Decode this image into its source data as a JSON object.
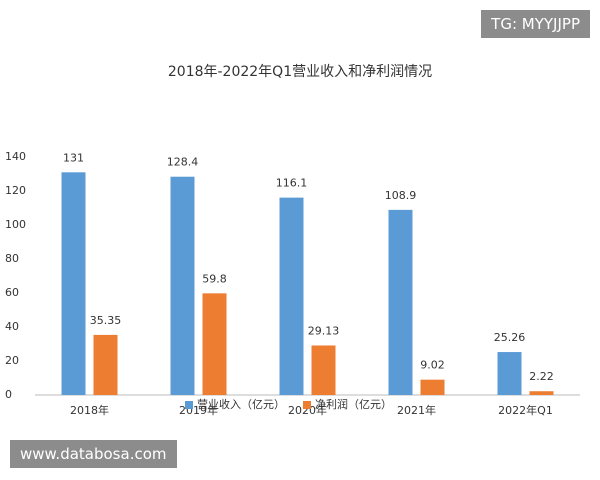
{
  "chart_data": {
    "type": "bar",
    "title": "2018年-2022年Q1营业收入和净利润情况",
    "categories": [
      "2018年",
      "2019年",
      "2020年",
      "2021年",
      "2022年Q1"
    ],
    "series": [
      {
        "name": "营业收入（亿元）",
        "color": "#5b9bd5",
        "values": [
          131,
          128.4,
          116.1,
          108.9,
          25.26
        ]
      },
      {
        "name": "净利润（亿元）",
        "color": "#ed7d31",
        "values": [
          35.35,
          59.8,
          29.13,
          9.02,
          2.22
        ]
      }
    ],
    "ylim": [
      0,
      140
    ],
    "yticks": [
      0,
      20,
      40,
      60,
      80,
      100,
      120,
      140
    ],
    "grid": false,
    "legend": "bottom"
  },
  "watermarks": [
    "TG: MYYJJPP",
    "www.databosa.com"
  ]
}
